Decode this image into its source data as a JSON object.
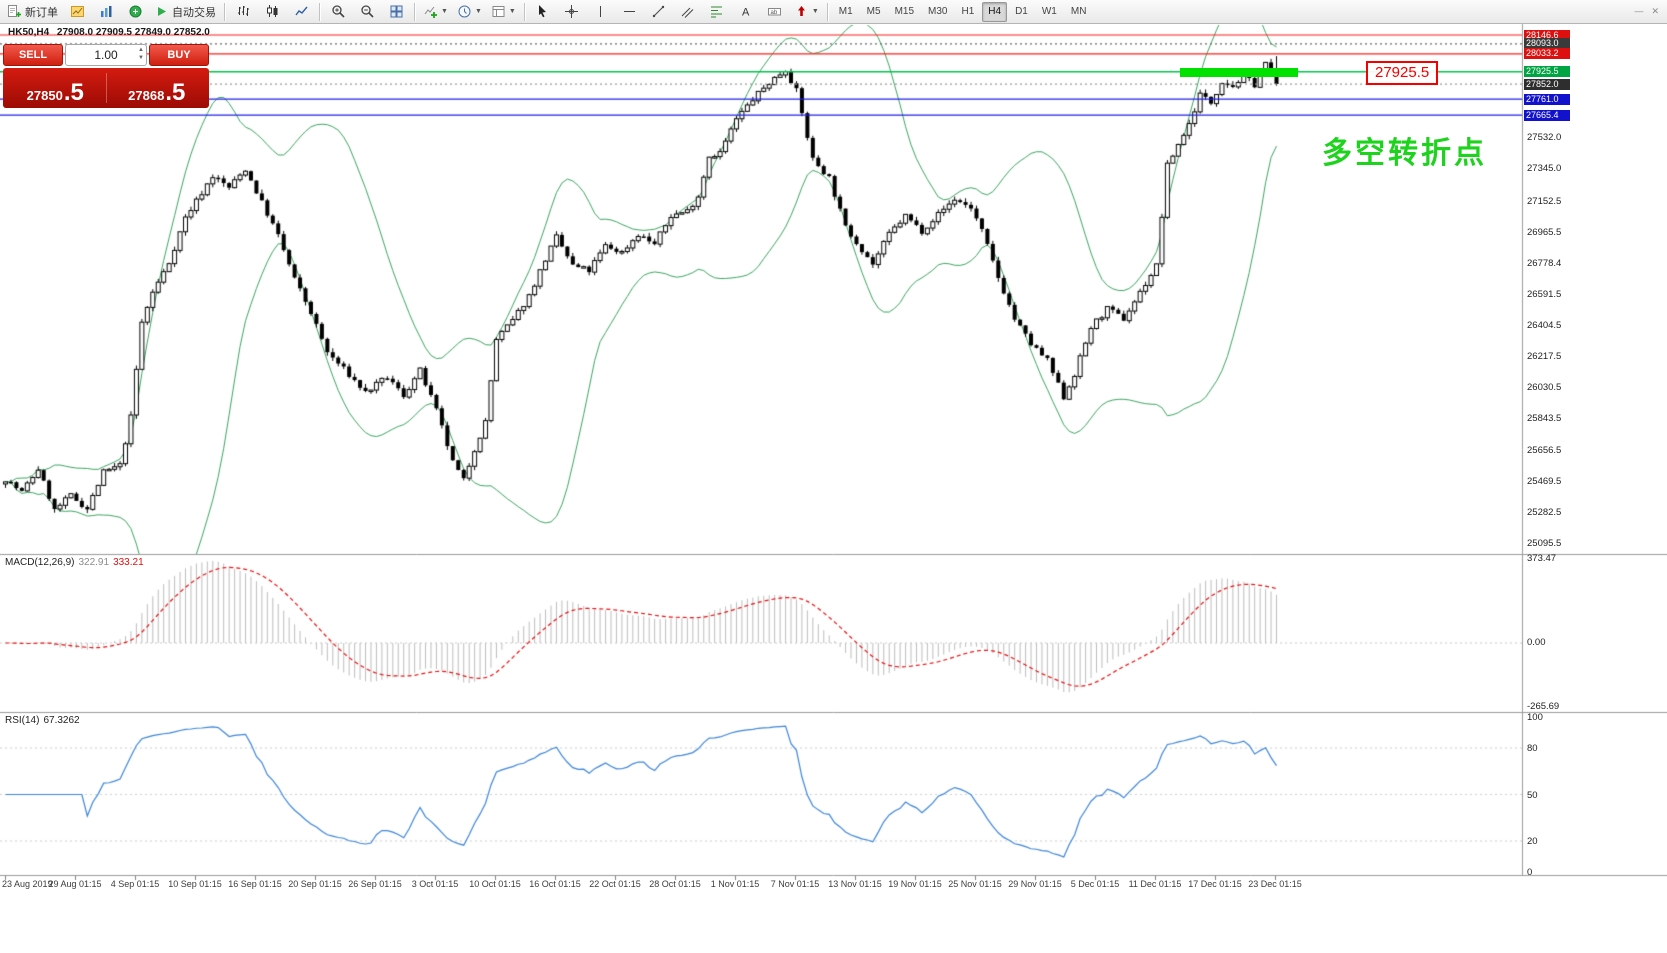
{
  "toolbar": {
    "new_order": "新订单",
    "autotrading": "自动交易",
    "timeframes": [
      "M1",
      "M5",
      "M15",
      "M30",
      "H1",
      "H4",
      "D1",
      "W1",
      "MN"
    ],
    "active_timeframe": "H4"
  },
  "one_click": {
    "sell_label": "SELL",
    "buy_label": "BUY",
    "volume": "1.00",
    "sell_price_int": "27850",
    "sell_price_frac": ".5",
    "buy_price_int": "27868",
    "buy_price_frac": ".5"
  },
  "chart_header": {
    "title": "HK50,H4",
    "values": "27908.0 27909.5 27849.0 27852.0"
  },
  "annotation": {
    "text": "多空转折点",
    "color": "#1ed31e"
  },
  "callout": {
    "text": "27925.5",
    "color": "#f40000"
  },
  "macd_panel": {
    "label": "MACD(12,26,9)",
    "value1": "322.91",
    "value2": "333.21",
    "scale_max": "373.47",
    "scale_zero": "0.00",
    "scale_min": "-265.69"
  },
  "rsi_panel": {
    "label": "RSI(14)",
    "value": "67.3262",
    "scale": [
      100,
      80,
      50,
      20,
      0
    ]
  },
  "chart_data": {
    "type": "candlestick",
    "symbol": "HK50",
    "period": "H4",
    "current_bar": {
      "open": 27908.0,
      "high": 27909.5,
      "low": 27849.0,
      "close": 27852.0
    },
    "price_axis": {
      "visible_min": 25095.5,
      "visible_max": 28146.6,
      "scale_ticks": [
        27532.0,
        27345.0,
        27152.5,
        26965.5,
        26778.4,
        26591.5,
        26404.5,
        26217.5,
        26030.5,
        25843.5,
        25656.5,
        25469.5,
        25282.5,
        25095.5
      ]
    },
    "horizontal_lines": [
      {
        "price": 28146.6,
        "color": "#ff1c1c",
        "style": "solid",
        "label_bg": "#dd0f0f"
      },
      {
        "price": 28093.0,
        "color": "#6a6a6a",
        "style": "dot",
        "label_bg": "#3a3a3a"
      },
      {
        "price": 28033.2,
        "color": "#ff1c1c",
        "style": "solid",
        "label_bg": "#dd0f0f"
      },
      {
        "price": 27925.5,
        "color": "#00c24e",
        "style": "solid",
        "label_bg": "#00a443"
      },
      {
        "price": 27852.0,
        "color": "#9a9a9a",
        "style": "dot",
        "label_bg": "#2e2e2e"
      },
      {
        "price": 27761.0,
        "color": "#1f1fe8",
        "style": "solid",
        "label_bg": "#1212cc"
      },
      {
        "price": 27665.4,
        "color": "#1f1fe8",
        "style": "solid",
        "label_bg": "#1212cc"
      }
    ],
    "highlight_zone": {
      "price": 27925.5,
      "color": "#00e100"
    },
    "num_candles": 234,
    "candles_approx": [
      [
        0,
        25480
      ],
      [
        3,
        25400
      ],
      [
        6,
        25540
      ],
      [
        9,
        25290
      ],
      [
        12,
        25380
      ],
      [
        15,
        25300
      ],
      [
        18,
        25520
      ],
      [
        21,
        25560
      ],
      [
        23,
        25850
      ],
      [
        25,
        26420
      ],
      [
        27,
        26600
      ],
      [
        30,
        26780
      ],
      [
        33,
        27050
      ],
      [
        36,
        27200
      ],
      [
        38,
        27300
      ],
      [
        41,
        27230
      ],
      [
        44,
        27340
      ],
      [
        47,
        27140
      ],
      [
        50,
        26940
      ],
      [
        53,
        26680
      ],
      [
        56,
        26480
      ],
      [
        59,
        26240
      ],
      [
        62,
        26140
      ],
      [
        66,
        26000
      ],
      [
        70,
        26090
      ],
      [
        73,
        25980
      ],
      [
        76,
        26130
      ],
      [
        79,
        25890
      ],
      [
        82,
        25580
      ],
      [
        84,
        25470
      ],
      [
        86,
        25660
      ],
      [
        88,
        25820
      ],
      [
        90,
        26320
      ],
      [
        93,
        26430
      ],
      [
        96,
        26580
      ],
      [
        99,
        26800
      ],
      [
        101,
        26930
      ],
      [
        104,
        26760
      ],
      [
        107,
        26730
      ],
      [
        110,
        26880
      ],
      [
        113,
        26840
      ],
      [
        116,
        26950
      ],
      [
        119,
        26890
      ],
      [
        122,
        27060
      ],
      [
        125,
        27090
      ],
      [
        127,
        27180
      ],
      [
        129,
        27420
      ],
      [
        131,
        27440
      ],
      [
        134,
        27640
      ],
      [
        137,
        27760
      ],
      [
        140,
        27860
      ],
      [
        143,
        27940
      ],
      [
        145,
        27810
      ],
      [
        148,
        27400
      ],
      [
        151,
        27290
      ],
      [
        154,
        26990
      ],
      [
        157,
        26860
      ],
      [
        159,
        26770
      ],
      [
        162,
        26950
      ],
      [
        165,
        27060
      ],
      [
        168,
        26970
      ],
      [
        171,
        27070
      ],
      [
        174,
        27160
      ],
      [
        177,
        27110
      ],
      [
        179,
        26970
      ],
      [
        182,
        26690
      ],
      [
        185,
        26440
      ],
      [
        188,
        26290
      ],
      [
        191,
        26190
      ],
      [
        194,
        25970
      ],
      [
        196,
        26110
      ],
      [
        199,
        26390
      ],
      [
        202,
        26500
      ],
      [
        205,
        26440
      ],
      [
        208,
        26600
      ],
      [
        211,
        26760
      ],
      [
        213,
        27360
      ],
      [
        215,
        27490
      ],
      [
        217,
        27610
      ],
      [
        219,
        27790
      ],
      [
        221,
        27740
      ],
      [
        223,
        27870
      ],
      [
        225,
        27840
      ],
      [
        227,
        27900
      ],
      [
        229,
        27850
      ],
      [
        231,
        27970
      ],
      [
        233,
        27852
      ]
    ],
    "indicators": [
      {
        "name": "Bollinger Bands",
        "period": 20,
        "deviation": 2,
        "color": "#3aa35f"
      },
      {
        "name": "MACD",
        "fast": 12,
        "slow": 26,
        "signal": 9,
        "hist_color": "#bdbdbd",
        "signal_color": "#e81010",
        "last_hist": 322.91,
        "last_signal": 333.21,
        "scale": [
          -265.69,
          373.47
        ]
      },
      {
        "name": "RSI",
        "period": 14,
        "color": "#3d85d8",
        "last": 67.3262,
        "levels": [
          80,
          50,
          20
        ]
      }
    ],
    "time_axis": [
      "23 Aug 2019",
      "29 Aug 01:15",
      "4 Sep 01:15",
      "10 Sep 01:15",
      "16 Sep 01:15",
      "20 Sep 01:15",
      "26 Sep 01:15",
      "3 Oct 01:15",
      "10 Oct 01:15",
      "16 Oct 01:15",
      "22 Oct 01:15",
      "28 Oct 01:15",
      "1 Nov 01:15",
      "7 Nov 01:15",
      "13 Nov 01:15",
      "19 Nov 01:15",
      "25 Nov 01:15",
      "29 Nov 01:15",
      "5 Dec 01:15",
      "11 Dec 01:15",
      "17 Dec 01:15",
      "23 Dec 01:15"
    ]
  }
}
